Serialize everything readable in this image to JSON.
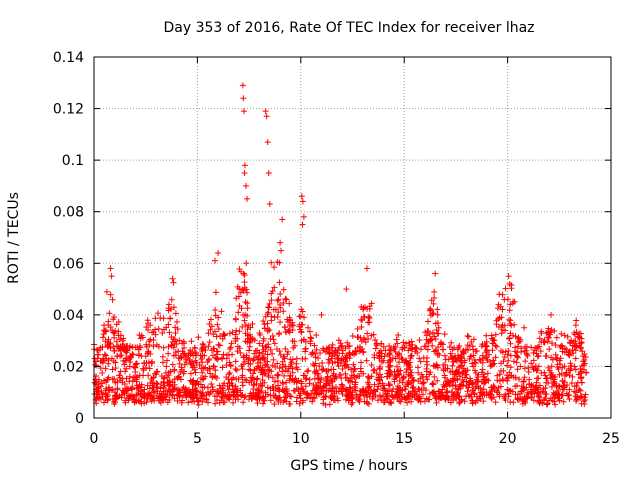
{
  "chart_data": {
    "type": "scatter",
    "title": "Day 353 of 2016, Rate Of TEC Index for receiver lhaz",
    "xlabel": "GPS time / hours",
    "ylabel": "ROTI / TECUs",
    "xlim": [
      0,
      25
    ],
    "ylim": [
      0,
      0.14
    ],
    "x_ticks": [
      "0",
      "5",
      "10",
      "15",
      "20",
      "25"
    ],
    "y_ticks": [
      "0",
      "0.02",
      "0.04",
      "0.06",
      "0.08",
      "0.1",
      "0.12",
      "0.14"
    ],
    "grid": true,
    "marker": "plus",
    "color": "#ff0000",
    "series": [
      {
        "x": [
          7.2,
          7.22,
          7.25,
          7.3,
          7.28,
          7.35,
          7.4,
          8.3,
          8.35,
          8.4,
          8.45,
          8.5,
          10.05,
          10.1,
          10.15,
          10.08,
          9.0,
          9.1,
          6.0,
          5.85,
          20.05,
          20.1,
          0.8,
          0.85,
          3.8,
          13.2,
          16.5,
          19.6,
          20.8,
          23.3,
          22.1,
          11.0,
          12.2
        ],
        "y": [
          0.129,
          0.124,
          0.119,
          0.098,
          0.095,
          0.09,
          0.085,
          0.119,
          0.117,
          0.107,
          0.095,
          0.083,
          0.086,
          0.084,
          0.078,
          0.075,
          0.068,
          0.077,
          0.064,
          0.061,
          0.055,
          0.052,
          0.058,
          0.055,
          0.054,
          0.058,
          0.056,
          0.048,
          0.035,
          0.036,
          0.04,
          0.04,
          0.05
        ]
      }
    ],
    "bulk_description": "Dense band of points from 0 to about 23.8 hours, mostly between 0.005 and 0.03 TECU, with spikes up to about 0.06 and isolated outliers near 7-10 hours."
  }
}
